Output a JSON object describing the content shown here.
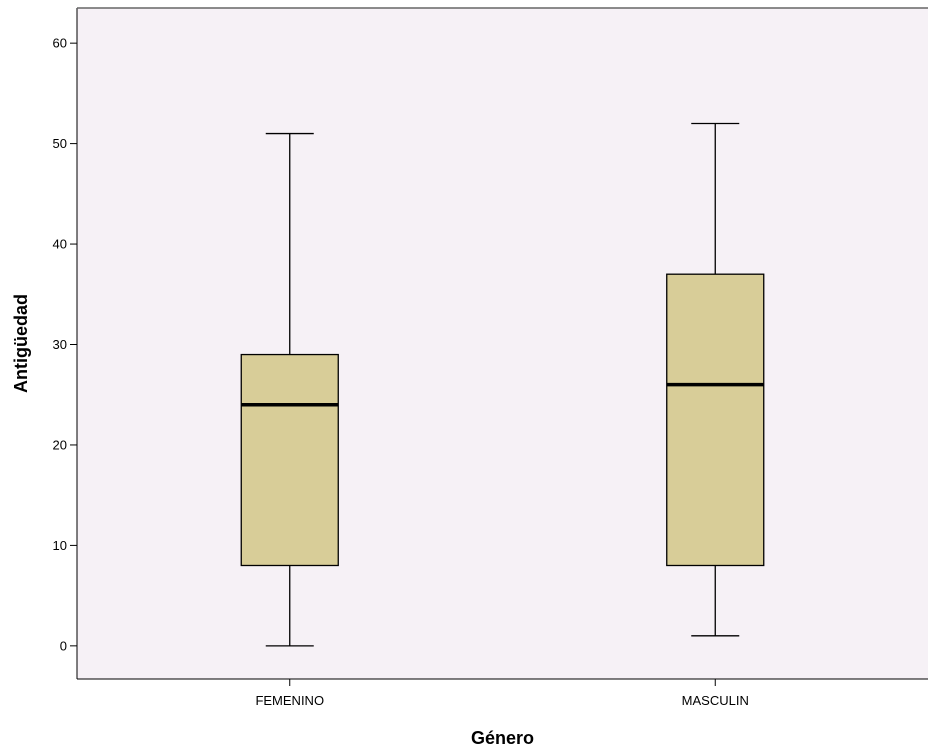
{
  "chart_data": {
    "type": "boxplot",
    "xlabel": "Género",
    "ylabel": "Antigüedad",
    "ylim": [
      -3.3,
      63.5
    ],
    "yticks": [
      0,
      10,
      20,
      30,
      40,
      50,
      60
    ],
    "grid": false,
    "legend": "none",
    "categories": [
      "FEMENINO",
      "MASCULIN"
    ],
    "boxes": [
      {
        "category": "FEMENINO",
        "min": 0,
        "q1": 8,
        "median": 24,
        "q3": 29,
        "max": 51
      },
      {
        "category": "MASCULIN",
        "min": 1,
        "q1": 8,
        "median": 26,
        "q3": 37,
        "max": 52
      }
    ],
    "colors": {
      "plot_background": "#f6f1f6",
      "box_fill": "#d8cd98",
      "stroke": "#000000",
      "frame": "#666666"
    }
  }
}
